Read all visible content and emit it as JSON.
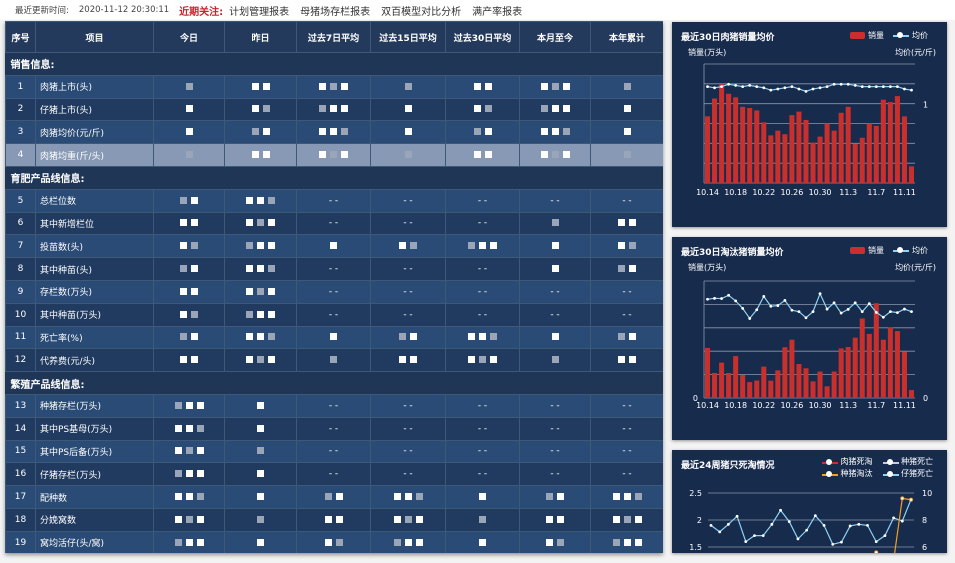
{
  "topbar": {
    "update_label": "最近更新时间:",
    "update_time": "2020-11-12 20:30:11",
    "focus_label": "近期关注:",
    "links": [
      "计划管理报表",
      "母猪场存栏报表",
      "双百模型对比分析",
      "满产率报表"
    ]
  },
  "table": {
    "headers": [
      "序号",
      "项目",
      "今日",
      "昨日",
      "过去7日平均",
      "过去15日平均",
      "过去30日平均",
      "本月至今",
      "本年累计"
    ],
    "sections": [
      {
        "title": "销售信息:",
        "rows": [
          {
            "no": "1",
            "item": "肉猪上市(头)",
            "cells": [
              "",
              "",
              "",
              "",
              "",
              "",
              ""
            ]
          },
          {
            "no": "2",
            "item": "仔猪上市(头)",
            "cells": [
              "",
              "",
              "",
              "",
              "",
              "",
              ""
            ]
          },
          {
            "no": "3",
            "item": "肉猪均价(元/斤)",
            "cells": [
              "",
              "",
              "",
              "",
              "",
              "",
              ""
            ]
          },
          {
            "no": "4",
            "item": "肉猪均重(斤/头)",
            "cells": [
              "",
              "",
              "",
              "",
              "",
              "",
              ""
            ],
            "highlight": true
          }
        ]
      },
      {
        "title": "育肥产品线信息:",
        "rows": [
          {
            "no": "5",
            "item": "总栏位数",
            "cells": [
              "",
              "",
              "- -",
              "- -",
              "- -",
              "- -",
              "- -"
            ]
          },
          {
            "no": "6",
            "item": "其中新增栏位",
            "cells": [
              "",
              "",
              "- -",
              "- -",
              "- -",
              "",
              ""
            ]
          },
          {
            "no": "7",
            "item": "投苗数(头)",
            "cells": [
              "",
              "",
              "",
              "",
              "",
              "",
              ""
            ]
          },
          {
            "no": "8",
            "item": "其中种苗(头)",
            "cells": [
              "",
              "",
              "- -",
              "- -",
              "- -",
              "",
              ""
            ]
          },
          {
            "no": "9",
            "item": "存栏数(万头)",
            "cells": [
              "",
              "",
              "- -",
              "- -",
              "- -",
              "- -",
              "- -"
            ]
          },
          {
            "no": "10",
            "item": "其中种苗(万头)",
            "cells": [
              "",
              "",
              "- -",
              "- -",
              "- -",
              "- -",
              "- -"
            ]
          },
          {
            "no": "11",
            "item": "死亡率(%)",
            "cells": [
              "",
              "",
              "",
              "",
              "",
              "",
              ""
            ]
          },
          {
            "no": "12",
            "item": "代养费(元/头)",
            "cells": [
              "",
              "",
              "",
              "",
              "",
              "",
              ""
            ]
          }
        ]
      },
      {
        "title": "繁殖产品线信息:",
        "rows": [
          {
            "no": "13",
            "item": "种猪存栏(万头)",
            "cells": [
              "",
              "",
              "- -",
              "- -",
              "- -",
              "- -",
              "- -"
            ]
          },
          {
            "no": "14",
            "item": "其中PS基母(万头)",
            "cells": [
              "",
              "",
              "- -",
              "- -",
              "- -",
              "- -",
              "- -"
            ]
          },
          {
            "no": "15",
            "item": "其中PS后备(万头)",
            "cells": [
              "",
              "",
              "- -",
              "- -",
              "- -",
              "- -",
              "- -"
            ]
          },
          {
            "no": "16",
            "item": "仔猪存栏(万头)",
            "cells": [
              "",
              "",
              "- -",
              "- -",
              "- -",
              "- -",
              "- -"
            ]
          },
          {
            "no": "17",
            "item": "配种数",
            "cells": [
              "",
              "",
              "",
              "",
              "",
              "",
              ""
            ]
          },
          {
            "no": "18",
            "item": "分娩窝数",
            "cells": [
              "",
              "",
              "",
              "",
              "",
              "",
              ""
            ]
          },
          {
            "no": "19",
            "item": "窝均活仔(头/窝)",
            "cells": [
              "",
              "",
              "",
              "",
              "",
              "",
              ""
            ]
          }
        ]
      }
    ]
  },
  "chart_data": [
    {
      "type": "bar+line",
      "title": "最近30日肉猪销量均价",
      "ylabel": "销量(万头)",
      "y2label": "均价(元/斤)",
      "legend": [
        "销量",
        "均价"
      ],
      "legend_position": "top-right",
      "categories": [
        "10.14",
        "10.15",
        "10.16",
        "10.17",
        "10.18",
        "10.19",
        "10.20",
        "10.21",
        "10.22",
        "10.23",
        "10.24",
        "10.25",
        "10.26",
        "10.27",
        "10.28",
        "10.29",
        "10.30",
        "10.31",
        "11.1",
        "11.2",
        "11.3",
        "11.4",
        "11.5",
        "11.6",
        "11.7",
        "11.8",
        "11.9",
        "11.10",
        "11.11",
        "11.12"
      ],
      "xticks": [
        "10.14",
        "10.18",
        "10.22",
        "10.26",
        "10.30",
        "11.3",
        "11.7",
        "11.11"
      ],
      "y2ticks": [
        {
          "value": 66,
          "label": "1"
        }
      ],
      "ylim": [
        0,
        100
      ],
      "y2lim": [
        0,
        100
      ],
      "series": [
        {
          "name": "销量",
          "type": "bar",
          "values": [
            56,
            71,
            83,
            75,
            72,
            64,
            63,
            61,
            51,
            40,
            44,
            41,
            57,
            60,
            53,
            34,
            39,
            50,
            44,
            59,
            64,
            33,
            38,
            50,
            48,
            70,
            68,
            73,
            56,
            14
          ]
        },
        {
          "name": "均价",
          "type": "line",
          "values": [
            81,
            80,
            81,
            83,
            82,
            81,
            82,
            81,
            80,
            78,
            79,
            80,
            81,
            79,
            77,
            79,
            80,
            81,
            83,
            83,
            83,
            82,
            81,
            81,
            81,
            81,
            81,
            81,
            79,
            78
          ]
        }
      ]
    },
    {
      "type": "bar+line",
      "title": "最近30日淘汰猪销量均价",
      "ylabel": "销量(万头)",
      "y2label": "均价(元/斤)",
      "legend": [
        "销量",
        "均价"
      ],
      "legend_position": "top-right",
      "categories": [
        "10.14",
        "10.15",
        "10.16",
        "10.17",
        "10.18",
        "10.19",
        "10.20",
        "10.21",
        "10.22",
        "10.23",
        "10.24",
        "10.25",
        "10.26",
        "10.27",
        "10.28",
        "10.29",
        "10.30",
        "10.31",
        "11.1",
        "11.2",
        "11.3",
        "11.4",
        "11.5",
        "11.6",
        "11.7",
        "11.8",
        "11.9",
        "11.10",
        "11.11",
        "11.12"
      ],
      "xticks": [
        "10.14",
        "10.18",
        "10.22",
        "10.26",
        "10.30",
        "11.3",
        "11.7",
        "11.11"
      ],
      "yticks": [
        {
          "value": 0,
          "label": "0"
        }
      ],
      "y2ticks": [
        {
          "value": 0,
          "label": "0"
        }
      ],
      "ylim": [
        0,
        5
      ],
      "y2lim": [
        0,
        5
      ],
      "series": [
        {
          "name": "销量",
          "type": "bar",
          "values": [
            2.14,
            1.07,
            1.51,
            1.07,
            1.79,
            0.98,
            0.68,
            0.75,
            1.34,
            0.74,
            1.18,
            2.17,
            2.49,
            1.45,
            1.27,
            0.71,
            1.13,
            0.5,
            1.13,
            2.12,
            2.18,
            2.58,
            3.4,
            2.74,
            4.05,
            2.49,
            3.02,
            2.86,
            1.99,
            0.34
          ]
        },
        {
          "name": "均价",
          "type": "line",
          "values": [
            4.22,
            4.26,
            4.25,
            4.39,
            4.15,
            3.83,
            3.4,
            3.77,
            4.34,
            3.92,
            3.95,
            4.17,
            3.75,
            3.69,
            3.43,
            3.69,
            4.46,
            3.8,
            4.07,
            3.63,
            3.79,
            4.07,
            3.69,
            4.03,
            3.66,
            3.45,
            3.69,
            3.65,
            3.8,
            3.69
          ]
        }
      ]
    },
    {
      "type": "line",
      "title": "最近24周猪只死淘情况",
      "legend": [
        "肉猪死淘",
        "种猪死亡",
        "种猪淘汰",
        "仔猪死亡"
      ],
      "legend_position": "top-right",
      "yticks": [
        "2.5",
        "2",
        "1.5"
      ],
      "y2ticks": [
        "10",
        "8",
        "6"
      ],
      "ylim": [
        1.5,
        2.5
      ],
      "y2lim": [
        6,
        10
      ],
      "series": [
        {
          "name": "仔猪死亡",
          "axis": "left",
          "values": [
            1.9,
            1.78,
            1.92,
            2.07,
            1.6,
            1.71,
            1.71,
            1.92,
            2.18,
            1.97,
            1.65,
            1.81,
            2.08,
            1.9,
            1.55,
            1.59,
            1.89,
            1.92,
            1.9,
            1.6,
            1.71,
            2.04,
            1.98,
            2.38
          ]
        },
        {
          "name": "种猪淘汰",
          "axis": "right",
          "values": [
            null,
            null,
            null,
            null,
            null,
            null,
            null,
            null,
            null,
            null,
            null,
            null,
            null,
            null,
            null,
            null,
            null,
            null,
            null,
            5.6,
            null,
            5.0,
            9.6,
            9.5
          ]
        }
      ]
    }
  ],
  "colors": {
    "bar": "#c9302c",
    "line": "#8fd3f5",
    "orange": "#f0a020",
    "bg": "#172b4d"
  }
}
